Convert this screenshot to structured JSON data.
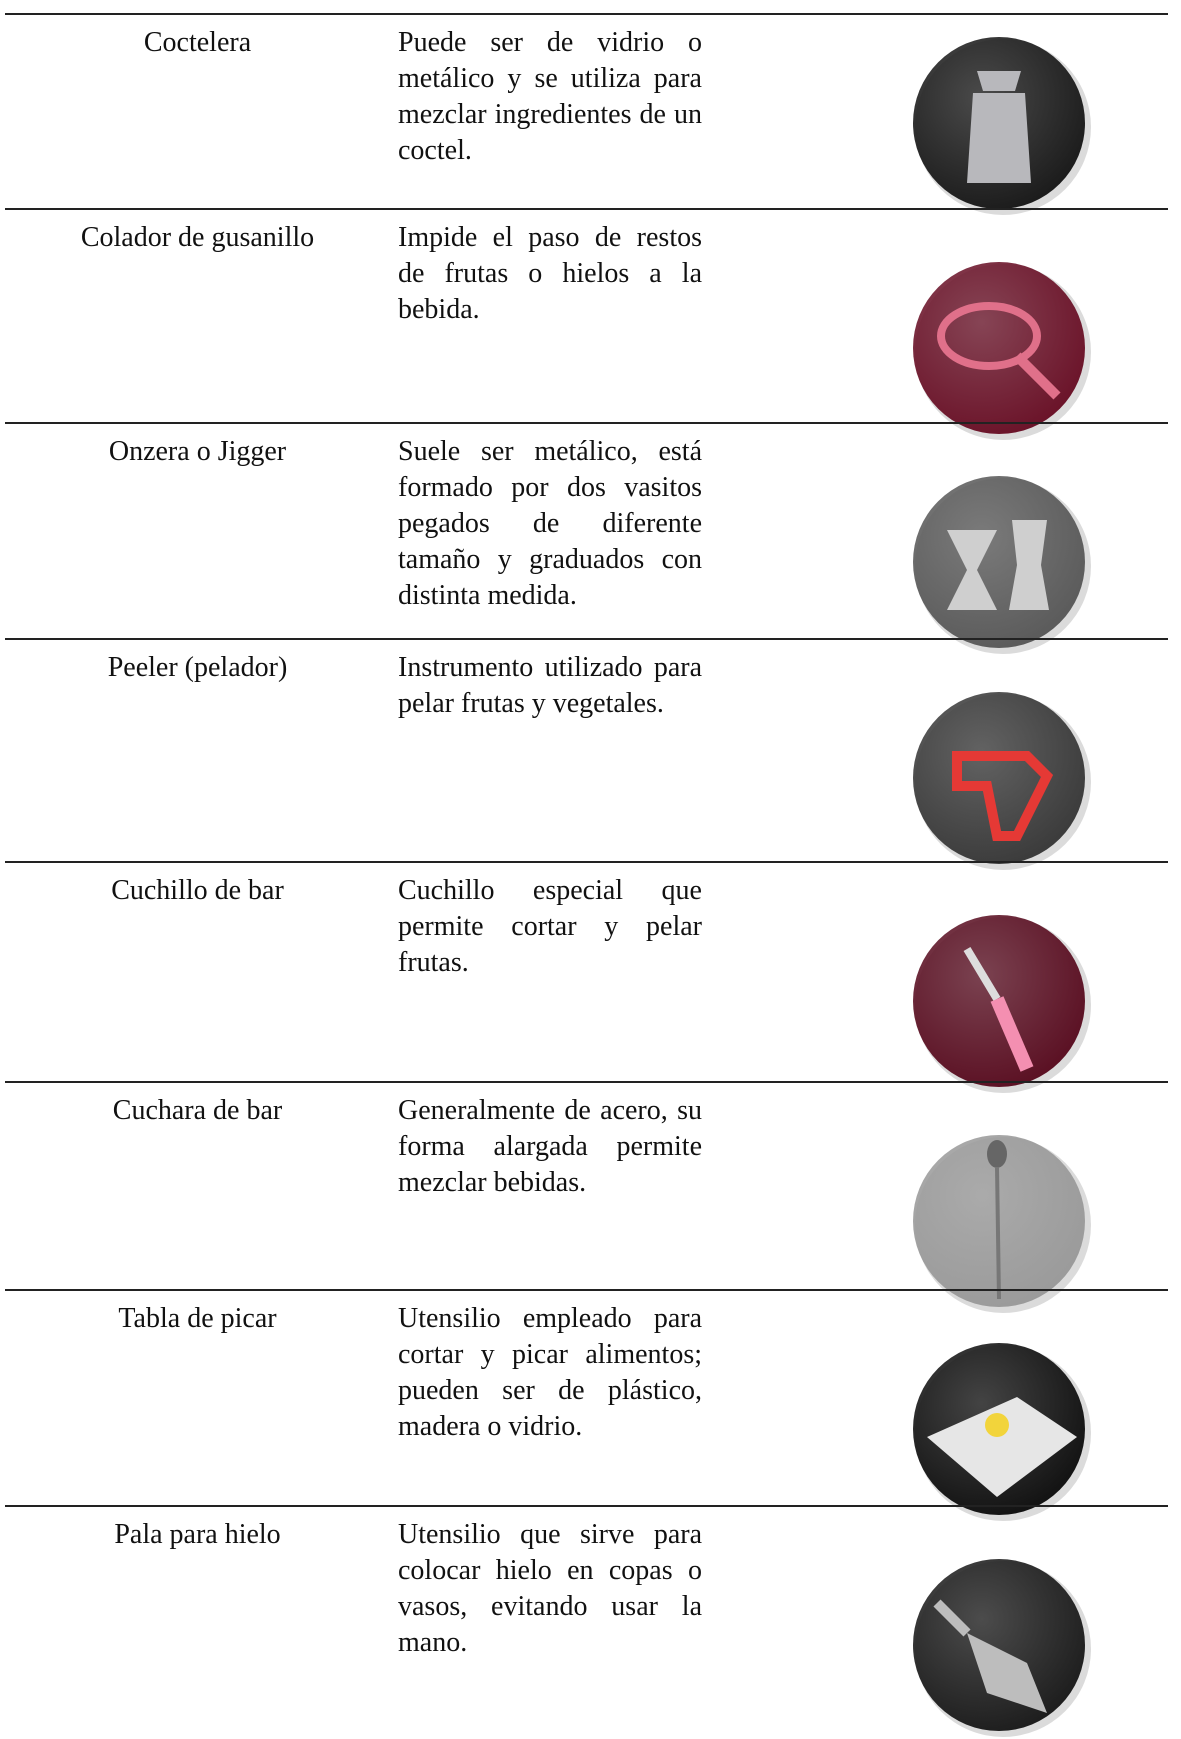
{
  "table": {
    "rows": [
      [
        "Coctelera",
        "Puede ser de vidrio o metálico y se utiliza para mezclar ingredientes de un coctel."
      ],
      [
        "Colador de gusanillo",
        "Impide el paso de restos de frutas o hielos a la bebida."
      ],
      [
        "Onzera o Jigger",
        "Suele ser metálico, está formado por dos vasitos pegados de diferente tamaño y graduados con distinta medida."
      ],
      [
        "Peeler (pelador)",
        "Instrumento utilizado para pelar frutas y vegetales."
      ],
      [
        "Cuchillo de bar",
        "Cuchillo especial que permite cortar y pelar frutas."
      ],
      [
        "Cuchara de bar",
        "Generalmente de acero, su forma alargada permite mezclar bebidas."
      ],
      [
        "Tabla de picar",
        "Utensilio empleado para cortar y picar alimentos; pueden ser de plástico, madera o vidrio."
      ],
      [
        "Pala para hielo",
        "Utensilio que sirve para colocar hielo en copas o vasos, evitando usar la mano."
      ]
    ]
  }
}
